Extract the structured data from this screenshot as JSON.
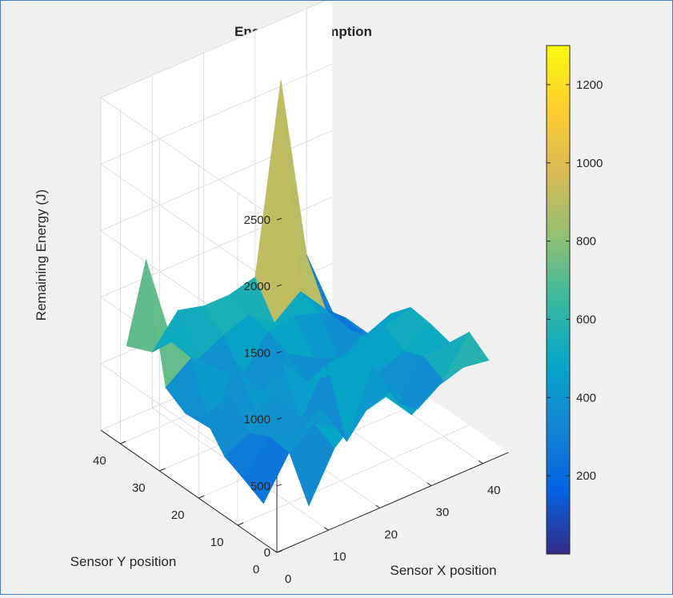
{
  "chart_data": {
    "type": "surface",
    "title": "Energy Consumption",
    "xlabel": "Sensor X position",
    "ylabel": "Sensor Y position",
    "zlabel": "Remaining Energy (J)",
    "xlim": [
      0,
      45
    ],
    "ylim": [
      0,
      45
    ],
    "zlim": [
      0,
      2500
    ],
    "x_ticks": [
      "0",
      "10",
      "20",
      "30",
      "40"
    ],
    "y_ticks": [
      "0",
      "10",
      "20",
      "30",
      "40"
    ],
    "z_ticks": [
      "0",
      "500",
      "1000",
      "1500",
      "2000",
      "2500"
    ],
    "grid": true,
    "colormap": "parula",
    "colorbar": {
      "range": [
        0,
        1300
      ],
      "ticks": [
        "200",
        "400",
        "600",
        "800",
        "1000",
        "1200"
      ]
    },
    "x": [
      0,
      5,
      10,
      15,
      20,
      25,
      30,
      35,
      40,
      45
    ],
    "y": [
      0,
      5,
      10,
      15,
      20,
      25,
      30,
      35,
      40,
      45
    ],
    "z": [
      [
        null,
        null,
        null,
        null,
        null,
        null,
        null,
        null,
        null,
        null
      ],
      [
        null,
        null,
        80,
        430,
        600,
        650,
        430,
        560,
        620,
        590
      ],
      [
        null,
        80,
        380,
        510,
        380,
        450,
        510,
        290,
        420,
        700
      ],
      [
        null,
        160,
        400,
        320,
        450,
        110,
        590,
        230,
        500,
        520
      ],
      [
        null,
        230,
        320,
        480,
        260,
        590,
        600,
        360,
        440,
        560
      ],
      [
        null,
        420,
        510,
        290,
        580,
        350,
        330,
        520,
        520,
        580
      ],
      [
        null,
        350,
        150,
        560,
        260,
        460,
        350,
        250,
        350,
        430
      ],
      [
        null,
        440,
        580,
        420,
        280,
        530,
        560,
        500,
        380,
        160
      ],
      [
        null,
        1300,
        600,
        380,
        480,
        550,
        410,
        560,
        340,
        100
      ],
      [
        null,
        550,
        420,
        650,
        600,
        600,
        650,
        2050,
        650,
        140
      ]
    ]
  }
}
